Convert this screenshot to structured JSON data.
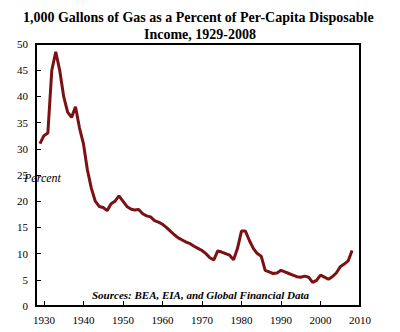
{
  "chart_data": {
    "type": "line",
    "title": "1,000 Gallons of Gas as a Percent of Per-Capita Disposable Income, 1929-2008",
    "annotations": [
      "Percent",
      "Sources: BEA, EIA, and Global Financial Data"
    ],
    "x": [
      1929,
      1930,
      1931,
      1932,
      1933,
      1934,
      1935,
      1936,
      1937,
      1938,
      1939,
      1940,
      1941,
      1942,
      1943,
      1944,
      1945,
      1946,
      1947,
      1948,
      1949,
      1950,
      1951,
      1952,
      1953,
      1954,
      1955,
      1956,
      1957,
      1958,
      1959,
      1960,
      1961,
      1962,
      1963,
      1964,
      1965,
      1966,
      1967,
      1968,
      1969,
      1970,
      1971,
      1972,
      1973,
      1974,
      1975,
      1976,
      1977,
      1978,
      1979,
      1980,
      1981,
      1982,
      1983,
      1984,
      1985,
      1986,
      1987,
      1988,
      1989,
      1990,
      1991,
      1992,
      1993,
      1994,
      1995,
      1996,
      1997,
      1998,
      1999,
      2000,
      2001,
      2002,
      2003,
      2004,
      2005,
      2006,
      2007,
      2008
    ],
    "values": [
      31,
      32.5,
      33,
      45,
      48.5,
      45,
      40,
      37,
      36,
      38,
      34,
      31,
      26,
      22.5,
      20,
      19,
      18.8,
      18.2,
      19.5,
      20,
      21,
      20,
      19,
      18.5,
      18.3,
      18.4,
      17.6,
      17.2,
      17,
      16.3,
      16,
      15.6,
      15,
      14.3,
      13.6,
      13,
      12.6,
      12.2,
      11.9,
      11.4,
      11,
      10.6,
      10,
      9.2,
      8.8,
      10.5,
      10.3,
      10,
      9.7,
      8.8,
      11,
      14.3,
      14.3,
      12.5,
      11,
      10,
      9.5,
      6.8,
      6.5,
      6.2,
      6.3,
      6.8,
      6.5,
      6.2,
      5.9,
      5.6,
      5.5,
      5.7,
      5.5,
      4.5,
      4.9,
      5.9,
      5.5,
      5.1,
      5.6,
      6.3,
      7.5,
      8,
      8.6,
      10.6
    ],
    "color": "#7b1113",
    "xlim": [
      1928,
      2010
    ],
    "xticks": [
      1930,
      1940,
      1950,
      1960,
      1970,
      1980,
      1990,
      2000,
      2010
    ],
    "ylim": [
      0,
      50
    ],
    "yticks": [
      0,
      5,
      10,
      15,
      20,
      25,
      30,
      35,
      40,
      45,
      50
    ],
    "grid": false
  }
}
